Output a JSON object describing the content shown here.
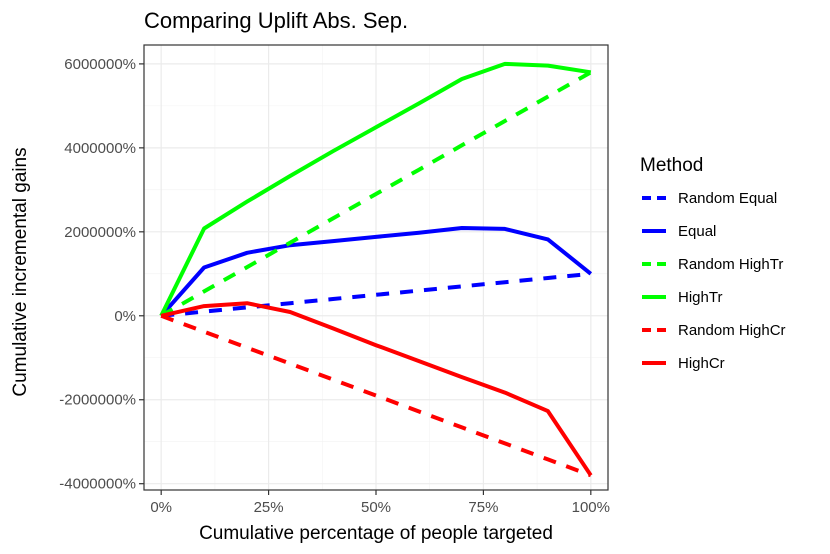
{
  "chart_data": {
    "type": "line",
    "title": "Comparing Uplift Abs. Sep.",
    "xlabel": "Cumulative percentage of people targeted",
    "ylabel": "Cumulative incremental gains",
    "x": [
      0,
      10,
      20,
      30,
      40,
      50,
      60,
      70,
      80,
      90,
      100
    ],
    "xlim": [
      -4,
      104
    ],
    "ylim": [
      -4150000,
      6450000
    ],
    "x_ticks": [
      0,
      25,
      50,
      75,
      100
    ],
    "x_tick_labels": [
      "0%",
      "25%",
      "50%",
      "75%",
      "100%"
    ],
    "y_ticks": [
      -4000000,
      -2000000,
      0,
      2000000,
      4000000,
      6000000
    ],
    "y_tick_labels": [
      "-4000000%",
      "-2000000%",
      "0%",
      "2000000%",
      "4000000%",
      "6000000%"
    ],
    "grid": true,
    "legend": {
      "title": "Method",
      "position": "right"
    },
    "series": [
      {
        "name": "Random Equal",
        "color": "#0000ff",
        "dash": "dashed",
        "values": [
          0,
          100000,
          200000,
          300000,
          400000,
          500000,
          600000,
          700000,
          800000,
          900000,
          1000000
        ]
      },
      {
        "name": "Equal",
        "color": "#0000ff",
        "dash": "solid",
        "values": [
          0,
          1150000,
          1500000,
          1680000,
          1780000,
          1880000,
          1980000,
          2090000,
          2070000,
          1820000,
          1000000
        ]
      },
      {
        "name": "Random HighTr",
        "color": "#00ff00",
        "dash": "dashed",
        "values": [
          0,
          580000,
          1160000,
          1740000,
          2320000,
          2900000,
          3480000,
          4060000,
          4640000,
          5220000,
          5800000
        ]
      },
      {
        "name": "HighTr",
        "color": "#00ff00",
        "dash": "solid",
        "values": [
          0,
          2080000,
          2720000,
          3330000,
          3920000,
          4490000,
          5060000,
          5640000,
          6000000,
          5960000,
          5800000
        ]
      },
      {
        "name": "Random HighCr",
        "color": "#ff0000",
        "dash": "dashed",
        "values": [
          0,
          -380000,
          -760000,
          -1140000,
          -1520000,
          -1900000,
          -2280000,
          -2660000,
          -3040000,
          -3420000,
          -3800000
        ]
      },
      {
        "name": "HighCr",
        "color": "#ff0000",
        "dash": "solid",
        "values": [
          0,
          230000,
          300000,
          90000,
          -300000,
          -700000,
          -1080000,
          -1460000,
          -1830000,
          -2270000,
          -3800000
        ]
      }
    ]
  }
}
